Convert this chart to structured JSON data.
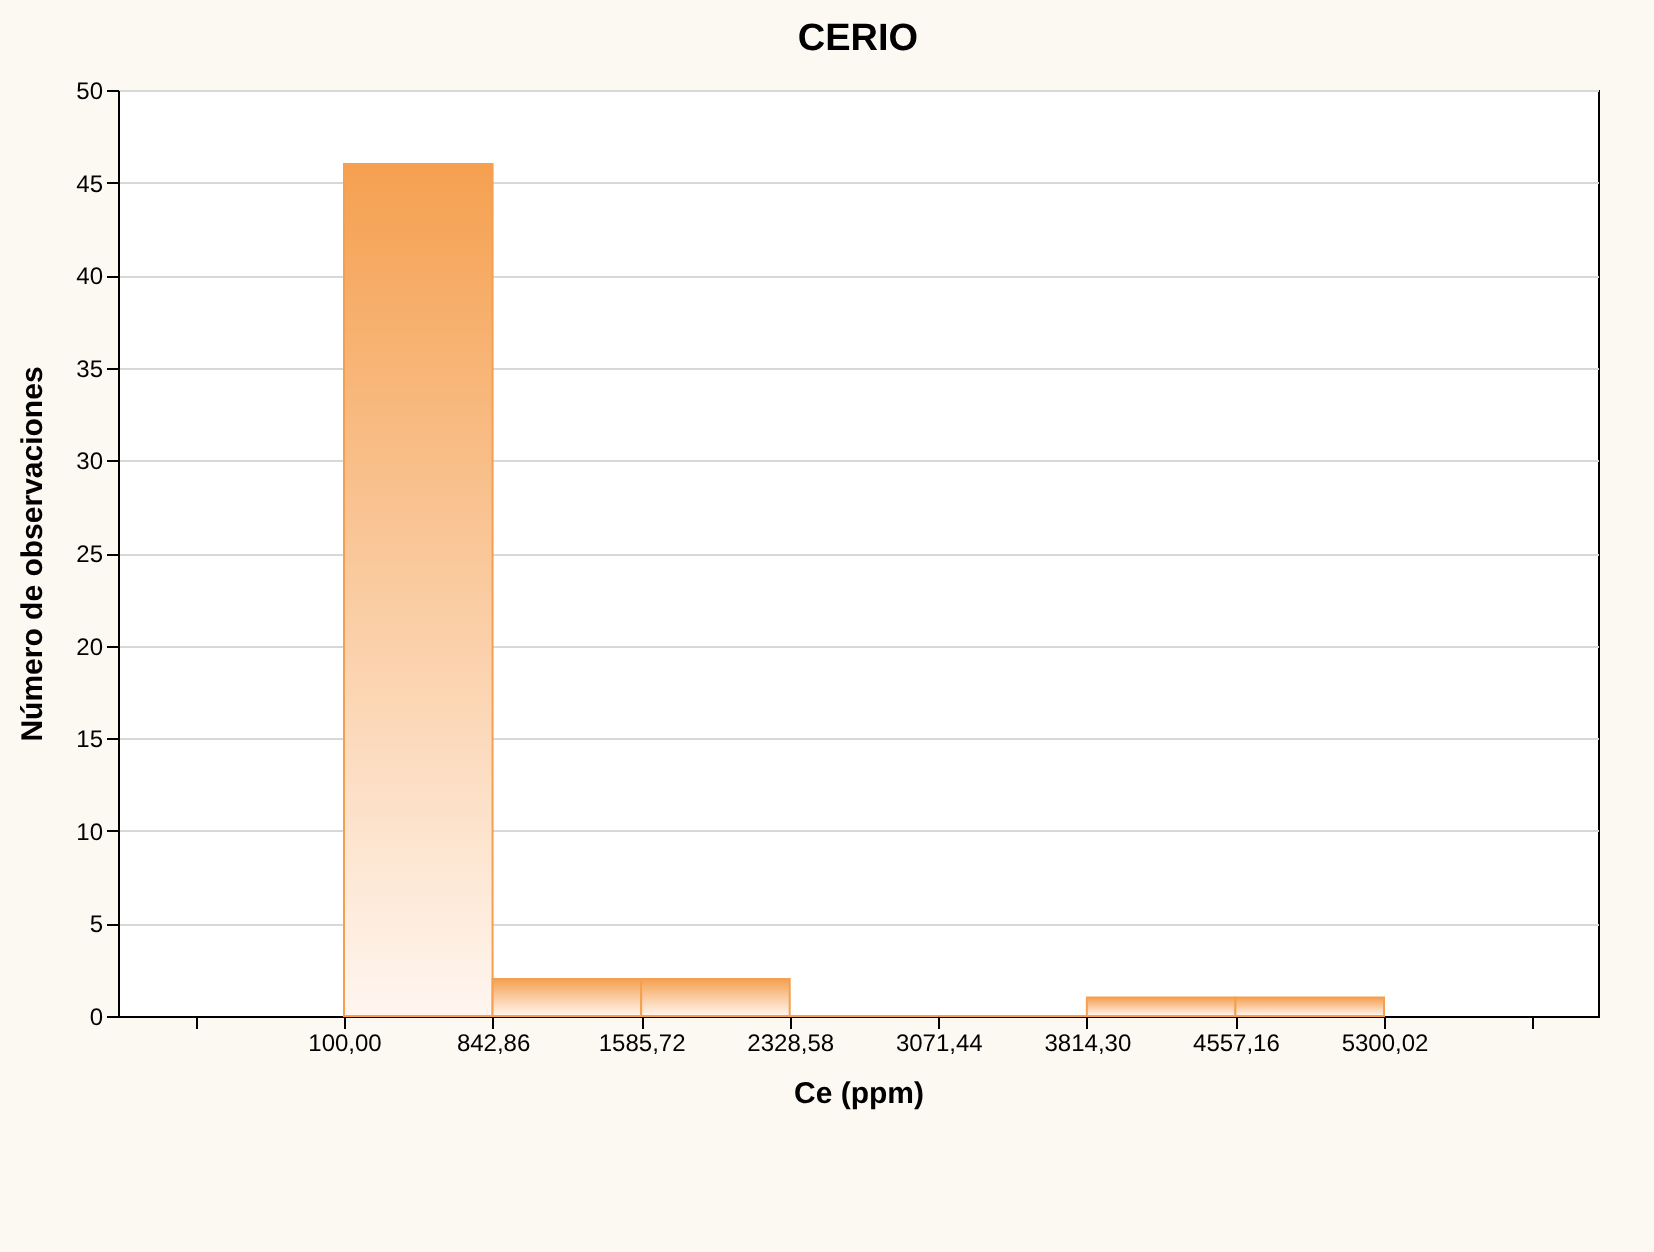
{
  "chart_data": {
    "type": "histogram",
    "title": "CERIO",
    "xlabel": "Ce (ppm)",
    "ylabel": "Número de observaciones",
    "bins": [
      100,
      842.86,
      1585.72,
      2328.58,
      3071.44,
      3814.3,
      4557.16,
      5300.02
    ],
    "values": [
      46,
      2,
      2,
      0,
      0,
      1,
      1
    ],
    "color": "#f5a050",
    "xlim": [
      -1030,
      6370
    ],
    "xticks": [
      {
        "value": -642.86,
        "label": null
      },
      {
        "value": 100,
        "label": "100,00"
      },
      {
        "value": 842.86,
        "label": "842,86"
      },
      {
        "value": 1585.72,
        "label": "1585,72"
      },
      {
        "value": 2328.58,
        "label": "2328,58"
      },
      {
        "value": 3071.44,
        "label": "3071,44"
      },
      {
        "value": 3814.3,
        "label": "3814,30"
      },
      {
        "value": 4557.16,
        "label": "4557,16"
      },
      {
        "value": 5300.02,
        "label": "5300,02"
      },
      {
        "value": 6042.88,
        "label": null
      }
    ],
    "ylim": [
      0,
      50
    ],
    "yticks": [
      0,
      5,
      10,
      15,
      20,
      25,
      30,
      35,
      40,
      45,
      50
    ],
    "grid": "y"
  }
}
